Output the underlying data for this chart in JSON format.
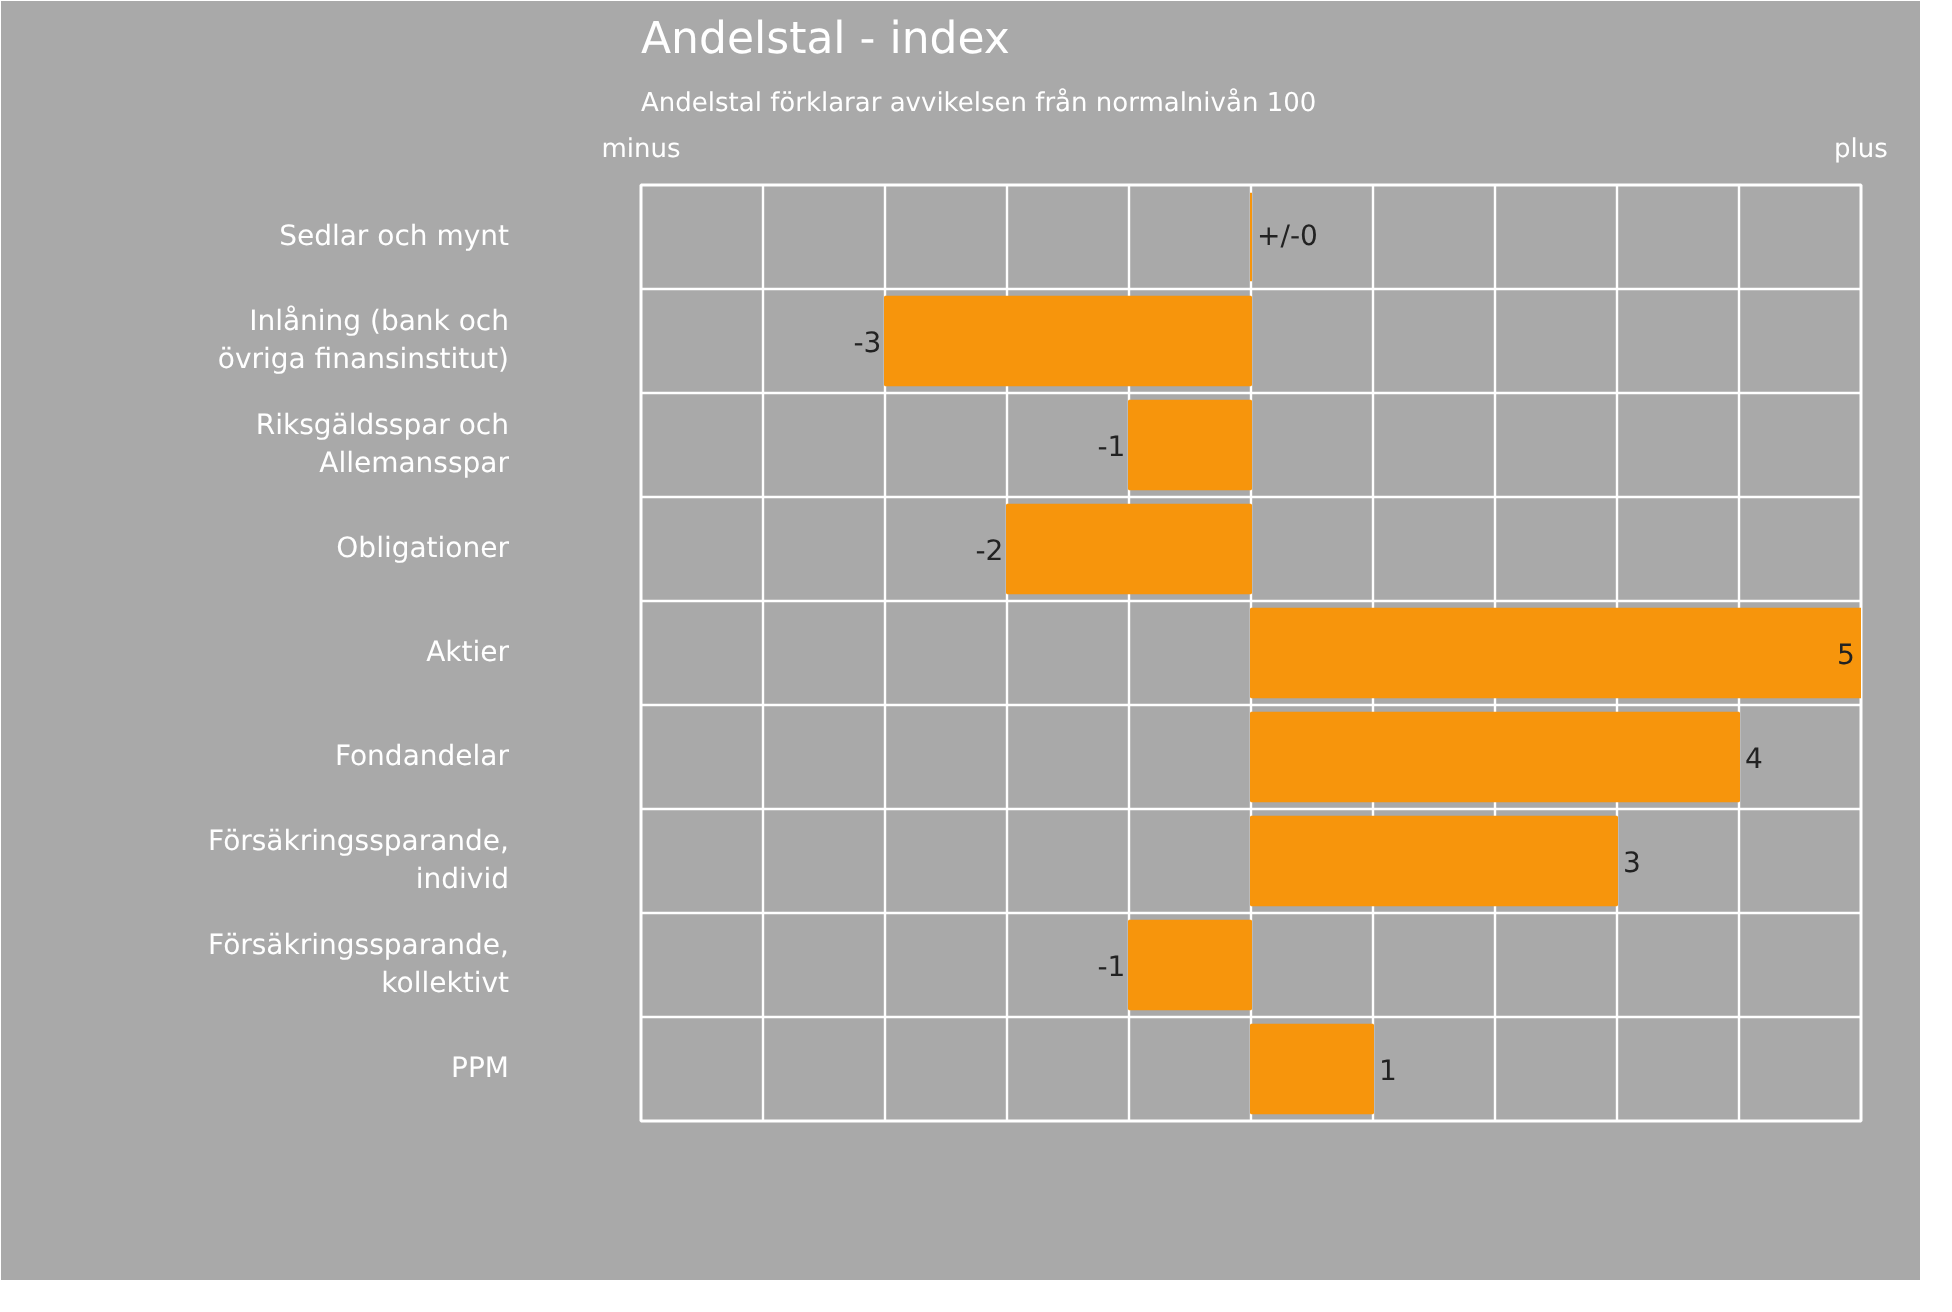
{
  "chart_data": {
    "type": "bar",
    "orientation": "horizontal",
    "title": "Andelstal - index",
    "subtitle": "Andelstal förklarar avvikelsen från normalnivån 100",
    "categories": [
      "Sedlar och mynt",
      "Inlåning (bank och övriga finansinstitut)",
      "Riksgäldsspar och Allemansspar",
      "Obligationer",
      "Aktier",
      "Fondandelar",
      "Försäkringssparande, individ",
      "Försäkringssparande, kollektivt",
      "PPM"
    ],
    "values": [
      0,
      -3,
      -1,
      -2,
      5,
      4,
      3,
      -1,
      1
    ],
    "value_labels": [
      "+/-0",
      "-3",
      "-1",
      "-2",
      "5",
      "4",
      "3",
      "-1",
      "1"
    ],
    "color": "#f7950c",
    "xlim": [
      -5,
      5
    ],
    "xticks": [
      {
        "value": -5,
        "label": null
      },
      {
        "value": -4,
        "label": null
      },
      {
        "value": -3,
        "label": null
      },
      {
        "value": -2,
        "label": null
      },
      {
        "value": -1,
        "label": null
      },
      {
        "value": 0,
        "label": null
      },
      {
        "value": 1,
        "label": null
      },
      {
        "value": 2,
        "label": null
      },
      {
        "value": 3,
        "label": null
      },
      {
        "value": 4,
        "label": null
      },
      {
        "value": 5,
        "label": null
      }
    ],
    "tick_labels": "y",
    "grid": true,
    "annotations": [
      "minus",
      "plus"
    ]
  }
}
